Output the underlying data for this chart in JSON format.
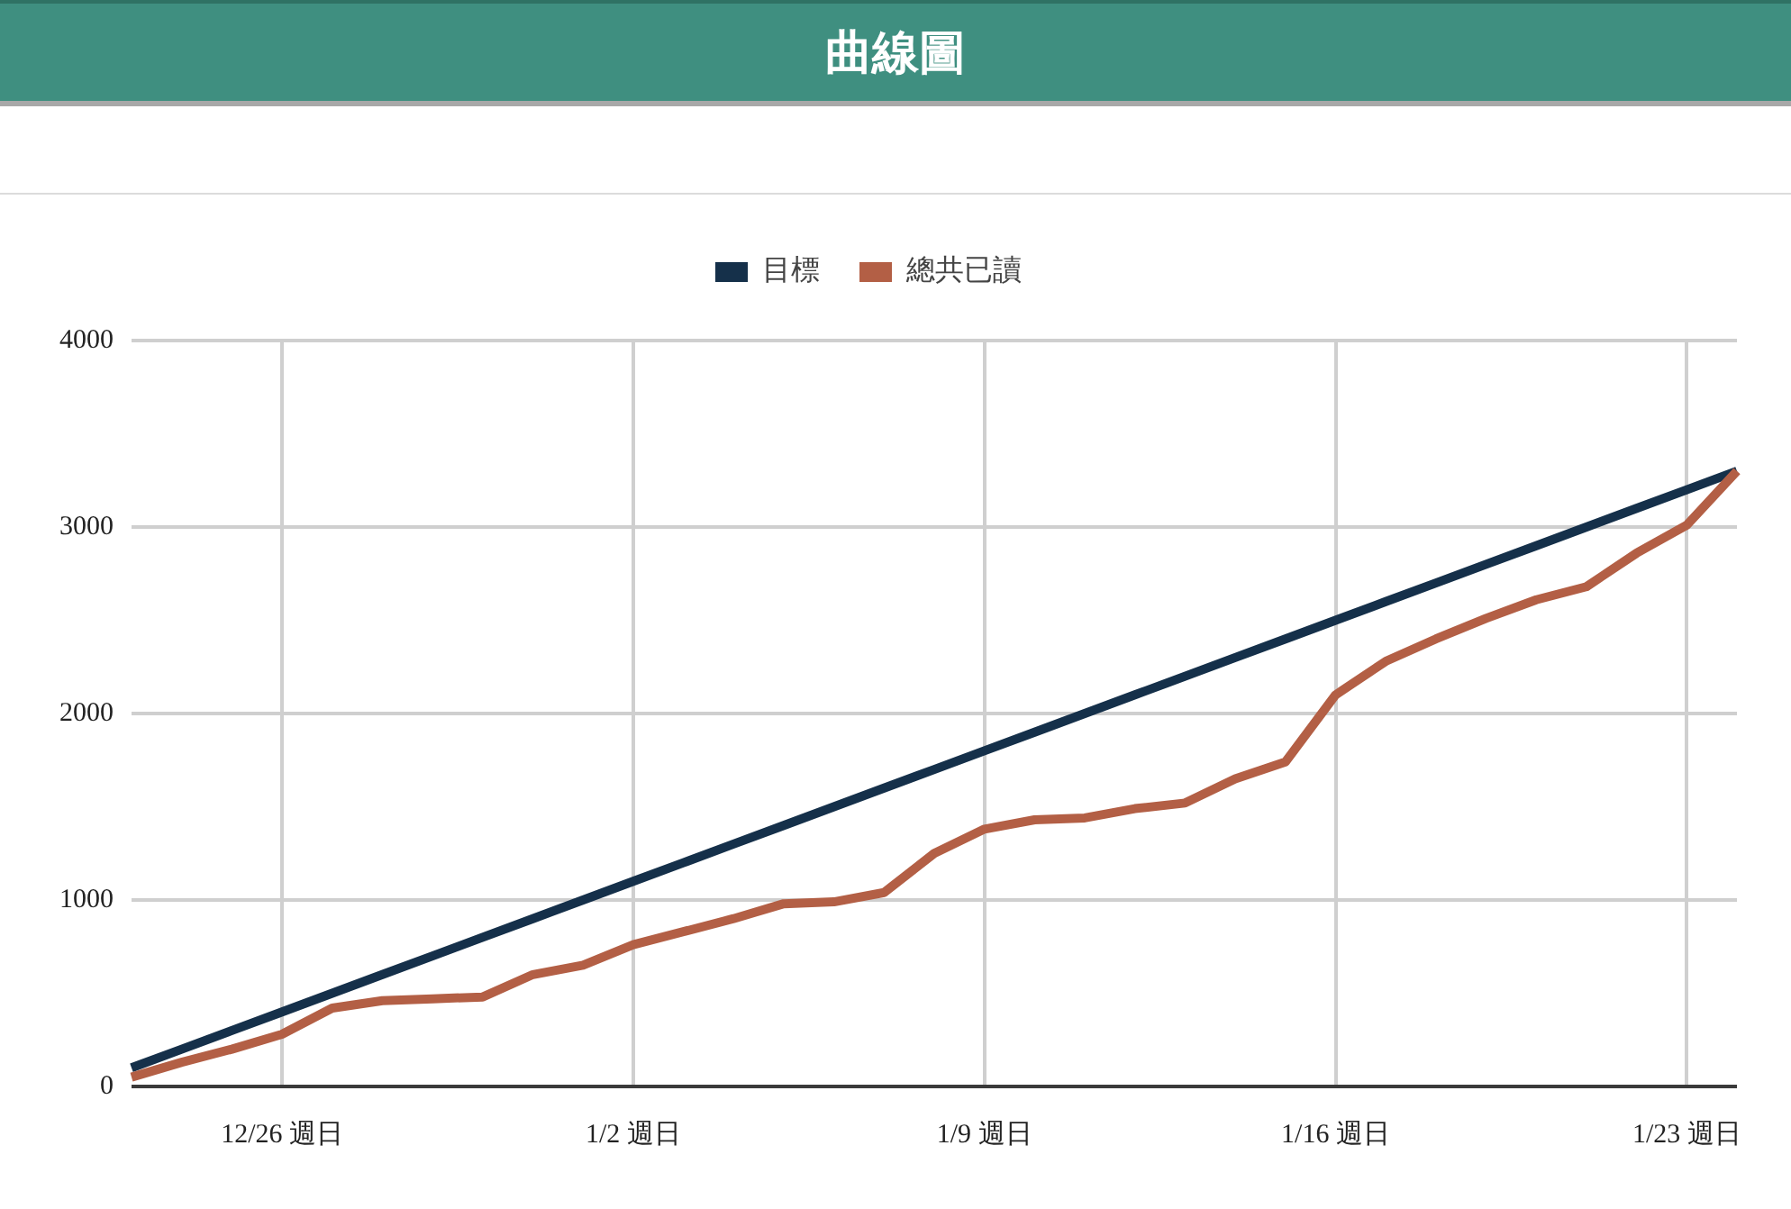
{
  "chart_data": {
    "type": "line",
    "title": "曲線圖",
    "categories": [
      null,
      null,
      null,
      "12/26 週日",
      null,
      null,
      null,
      null,
      null,
      null,
      "1/2 週日",
      null,
      null,
      null,
      null,
      null,
      null,
      "1/9 週日",
      null,
      null,
      null,
      null,
      null,
      null,
      "1/16 週日",
      null,
      null,
      null,
      null,
      null,
      null,
      "1/23 週日",
      null
    ],
    "ylim": [
      0,
      4000
    ],
    "yticks": [
      0,
      1000,
      2000,
      3000,
      4000
    ],
    "grid": true,
    "legend": "top",
    "marker": "none",
    "line_style": "solid",
    "series": [
      {
        "name": "目標",
        "color": "#15304a",
        "values": [
          100,
          200,
          300,
          400,
          500,
          600,
          700,
          800,
          900,
          1000,
          1100,
          1200,
          1300,
          1400,
          1500,
          1600,
          1700,
          1800,
          1900,
          2000,
          2100,
          2200,
          2300,
          2400,
          2500,
          2600,
          2700,
          2800,
          2900,
          3000,
          3100,
          3200,
          3300
        ]
      },
      {
        "name": "總共已讀",
        "color": "#b35f45",
        "values": [
          50,
          130,
          200,
          280,
          420,
          460,
          470,
          480,
          600,
          650,
          760,
          830,
          900,
          980,
          990,
          1040,
          1250,
          1380,
          1430,
          1440,
          1490,
          1520,
          1650,
          1740,
          2100,
          2280,
          2400,
          2510,
          2610,
          2680,
          2860,
          3010,
          3300
        ]
      }
    ]
  }
}
